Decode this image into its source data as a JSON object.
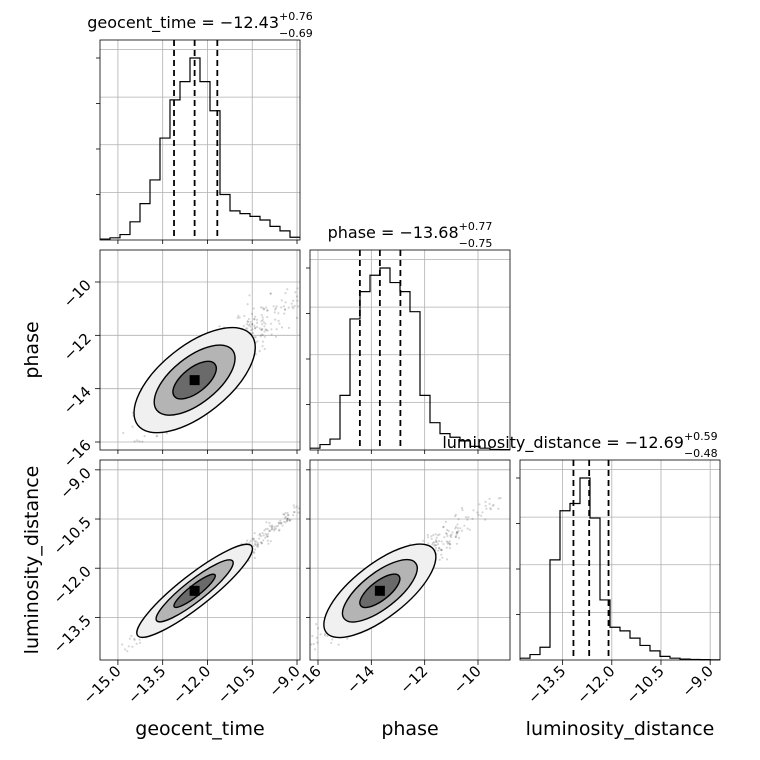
{
  "chart_data": {
    "type": "corner",
    "parameters": [
      "geocent_time",
      "phase",
      "luminosity_distance"
    ],
    "axis_labels": {
      "x": [
        "geocent_time",
        "phase",
        "luminosity_distance"
      ],
      "y": [
        "phase",
        "luminosity_distance"
      ]
    },
    "titles": [
      {
        "param": "geocent_time",
        "text": "geocent_time = −12.43",
        "plus": "+0.76",
        "minus": "−0.69",
        "median": -12.43,
        "upper": 0.76,
        "lower": 0.69
      },
      {
        "param": "phase",
        "text": "phase = −13.68",
        "plus": "+0.77",
        "minus": "−0.75",
        "median": -13.68,
        "upper": 0.77,
        "lower": 0.75
      },
      {
        "param": "luminosity_distance",
        "text": "luminosity_distance = −12.69",
        "plus": "+0.59",
        "minus": "−0.48",
        "median": -12.69,
        "upper": 0.59,
        "lower": 0.48
      }
    ],
    "ranges": {
      "geocent_time": [
        -15.6,
        -8.9
      ],
      "phase": [
        -16.3,
        -8.8
      ],
      "luminosity_distance": [
        -14.8,
        -8.7
      ]
    },
    "ticks": {
      "geocent_time": [
        "−15.0",
        "−13.5",
        "−12.0",
        "−10.5",
        "−9.0"
      ],
      "geocent_time_values": [
        -15.0,
        -13.5,
        -12.0,
        -10.5,
        -9.0
      ],
      "phase": [
        "−16",
        "−14",
        "−12",
        "−10"
      ],
      "phase_values": [
        -16,
        -14,
        -12,
        -10
      ],
      "luminosity_distance": [
        "−13.5",
        "−12.0",
        "−10.5",
        "−9.0"
      ],
      "luminosity_distance_values": [
        -13.5,
        -12.0,
        -10.5,
        -9.0
      ]
    },
    "histograms": {
      "geocent_time": {
        "bin_edges": [
          -15.6,
          -15.265,
          -14.93,
          -14.595,
          -14.26,
          -13.925,
          -13.59,
          -13.255,
          -12.92,
          -12.585,
          -12.25,
          -11.915,
          -11.58,
          -11.245,
          -10.91,
          -10.575,
          -10.24,
          -9.905,
          -9.57,
          -9.235,
          -8.9
        ],
        "counts": [
          0.005,
          0.012,
          0.03,
          0.1,
          0.2,
          0.33,
          0.56,
          0.77,
          0.87,
          1.0,
          0.87,
          0.71,
          0.25,
          0.16,
          0.145,
          0.13,
          0.11,
          0.075,
          0.05,
          0.015
        ]
      },
      "phase": {
        "bin_edges": [
          -16.3,
          -15.925,
          -15.55,
          -15.175,
          -14.8,
          -14.425,
          -14.05,
          -13.675,
          -13.3,
          -12.925,
          -12.55,
          -12.175,
          -11.8,
          -11.425,
          -11.05,
          -10.675,
          -10.3,
          -9.925,
          -9.55,
          -9.175,
          -8.8
        ],
        "counts": [
          0.01,
          0.03,
          0.06,
          0.3,
          0.72,
          0.87,
          0.96,
          1.0,
          0.92,
          0.87,
          0.76,
          0.3,
          0.15,
          0.09,
          0.07,
          0.05,
          0.02,
          0.01,
          0.003,
          0.002
        ]
      },
      "luminosity_distance": {
        "bin_edges": [
          -14.8,
          -14.495,
          -14.19,
          -13.885,
          -13.58,
          -13.275,
          -12.97,
          -12.665,
          -12.36,
          -12.055,
          -11.75,
          -11.445,
          -11.14,
          -10.835,
          -10.53,
          -10.225,
          -9.92,
          -9.615,
          -9.31,
          -9.005,
          -8.7
        ],
        "counts": [
          0.01,
          0.03,
          0.07,
          0.55,
          0.82,
          0.86,
          1.0,
          0.78,
          0.33,
          0.18,
          0.16,
          0.12,
          0.08,
          0.05,
          0.02,
          0.01,
          0.005,
          0.003,
          0.002,
          0.001
        ]
      }
    },
    "quantile_lines": {
      "geocent_time": [
        -13.12,
        -12.43,
        -11.67
      ],
      "phase": [
        -14.43,
        -13.68,
        -12.91
      ],
      "luminosity_distance": [
        -13.17,
        -12.69,
        -12.1
      ]
    },
    "scatter_2d": [
      {
        "x": "geocent_time",
        "y": "phase",
        "correlation": 0.85
      },
      {
        "x": "geocent_time",
        "y": "luminosity_distance",
        "correlation": 0.97
      },
      {
        "x": "phase",
        "y": "luminosity_distance",
        "correlation": 0.9
      }
    ],
    "grid": true,
    "colors": {
      "points": "#000000",
      "contour_fill": "#808080",
      "lines": "#000000"
    }
  }
}
